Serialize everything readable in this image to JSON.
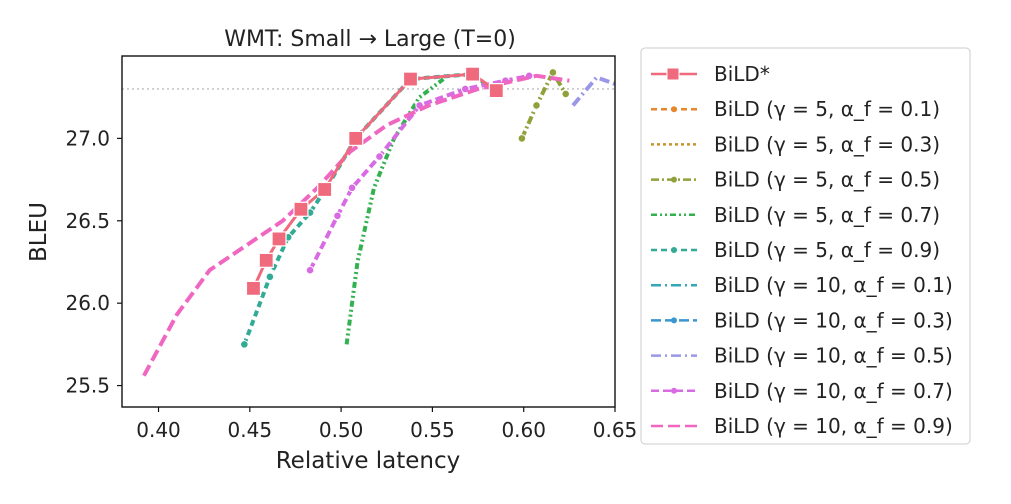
{
  "chart_data": {
    "type": "line",
    "title": "WMT:  Small → Large   (T=0)",
    "xlabel": "Relative latency",
    "ylabel": "BLEU",
    "xlim": [
      0.38,
      0.65
    ],
    "ylim": [
      25.37,
      27.5
    ],
    "xticks": [
      0.4,
      0.45,
      0.5,
      0.55,
      0.6,
      0.65
    ],
    "xtick_labels": [
      "0.40",
      "0.45",
      "0.50",
      "0.55",
      "0.60",
      "0.65"
    ],
    "yticks": [
      25.5,
      26.0,
      26.5,
      27.0
    ],
    "ytick_labels": [
      "25.5",
      "26.0",
      "26.5",
      "27.0"
    ],
    "reference_line": {
      "y": 27.3,
      "style": "dotted",
      "color": "#c8c8c8"
    },
    "legend_position": "outside-right",
    "series": [
      {
        "name": "BiLD*",
        "legend": "BiLD*",
        "color": "#f06a7d",
        "dash": "",
        "marker": "square",
        "x": [
          0.452,
          0.459,
          0.466,
          0.478,
          0.491,
          0.508,
          0.538,
          0.572,
          0.585
        ],
        "y": [
          26.09,
          26.26,
          26.39,
          26.57,
          26.69,
          27.0,
          27.36,
          27.39,
          27.29
        ]
      },
      {
        "name": "BiLD (gamma=5, alpha_f=0.1)",
        "legend": "BiLD (γ = 5, α_f = 0.1)",
        "color": "#e8862c",
        "dash": "6,4",
        "marker": "dot",
        "x": [],
        "y": []
      },
      {
        "name": "BiLD (gamma=5, alpha_f=0.3)",
        "legend": "BiLD (γ = 5, α_f = 0.3)",
        "color": "#c8922c",
        "dash": "3,3",
        "marker": "none",
        "x": [],
        "y": []
      },
      {
        "name": "BiLD (gamma=5, alpha_f=0.5)",
        "legend": "BiLD (γ = 5, α_f = 0.5)",
        "color": "#8fa13a",
        "dash": "8,3,2,3",
        "marker": "dot",
        "x": [
          0.599,
          0.607,
          0.616,
          0.623
        ],
        "y": [
          27.0,
          27.2,
          27.4,
          27.27
        ]
      },
      {
        "name": "BiLD (gamma=5, alpha_f=0.7)",
        "legend": "BiLD (γ = 5, α_f = 0.7)",
        "color": "#33b150",
        "dash": "6,3,2,3,2,3",
        "marker": "none",
        "x": [
          0.503,
          0.509,
          0.518,
          0.529,
          0.543,
          0.556
        ],
        "y": [
          25.75,
          26.25,
          26.7,
          27.0,
          27.25,
          27.36
        ]
      },
      {
        "name": "BiLD (gamma=5, alpha_f=0.9)",
        "legend": "BiLD (γ = 5, α_f = 0.9)",
        "color": "#31ab95",
        "dash": "6,4",
        "marker": "dot",
        "x": [
          0.447,
          0.461,
          0.471,
          0.483,
          0.492,
          0.508,
          0.538,
          0.572,
          0.585
        ],
        "y": [
          25.75,
          26.16,
          26.4,
          26.55,
          26.7,
          27.0,
          27.36,
          27.39,
          27.28
        ]
      },
      {
        "name": "BiLD (gamma=10, alpha_f=0.1)",
        "legend": "BiLD (γ = 10, α_f = 0.1)",
        "color": "#36a7b8",
        "dash": "10,4,2,4",
        "marker": "none",
        "x": [],
        "y": []
      },
      {
        "name": "BiLD (gamma=10, alpha_f=0.3)",
        "legend": "BiLD (γ = 10, α_f = 0.3)",
        "color": "#3a96cf",
        "dash": "10,4",
        "marker": "dot",
        "x": [],
        "y": []
      },
      {
        "name": "BiLD (gamma=10, alpha_f=0.5)",
        "legend": "BiLD (γ = 10, α_f = 0.5)",
        "color": "#9a97e6",
        "dash": "10,4,2,4",
        "marker": "none",
        "x": [
          0.627,
          0.64,
          0.65
        ],
        "y": [
          27.2,
          27.37,
          27.33
        ]
      },
      {
        "name": "BiLD (gamma=10, alpha_f=0.7)",
        "legend": "BiLD (γ = 10, α_f = 0.7)",
        "color": "#d86be4",
        "dash": "8,4",
        "marker": "dot",
        "x": [
          0.483,
          0.498,
          0.506,
          0.521,
          0.543,
          0.568,
          0.59,
          0.603
        ],
        "y": [
          26.2,
          26.53,
          26.7,
          26.89,
          27.2,
          27.3,
          27.35,
          27.38
        ]
      },
      {
        "name": "BiLD (gamma=10, alpha_f=0.9)",
        "legend": "BiLD (γ = 10, α_f = 0.9)",
        "color": "#f067c2",
        "dash": "12,5",
        "marker": "none",
        "x": [
          0.392,
          0.41,
          0.428,
          0.448,
          0.468,
          0.487,
          0.505,
          0.525,
          0.548,
          0.575,
          0.607,
          0.625
        ],
        "y": [
          25.56,
          25.93,
          26.2,
          26.35,
          26.5,
          26.7,
          26.92,
          27.08,
          27.2,
          27.3,
          27.38,
          27.35
        ]
      }
    ]
  }
}
